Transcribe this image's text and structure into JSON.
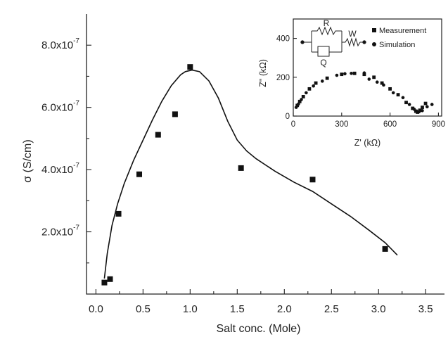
{
  "chart_data": [
    {
      "type": "scatter",
      "xlabel": "Salt conc. (Mole)",
      "ylabel": "σ (S/cm)",
      "xlim": [
        -0.1,
        3.7
      ],
      "ylim": [
        0.0,
        9e-07
      ],
      "xticks": [
        0.0,
        0.5,
        1.0,
        1.5,
        2.0,
        2.5,
        3.0,
        3.5
      ],
      "xtick_labels": [
        "0.0",
        "0.5",
        "1.0",
        "1.5",
        "2.0",
        "2.5",
        "3.0",
        "3.5"
      ],
      "yticks": [
        2e-07,
        4e-07,
        6e-07,
        8e-07
      ],
      "ytick_labels": [
        {
          "mant": "2.0x10",
          "exp": "-7"
        },
        {
          "mant": "4.0x10",
          "exp": "-7"
        },
        {
          "mant": "6.0x10",
          "exp": "-7"
        },
        {
          "mant": "8.0x10",
          "exp": "-7"
        }
      ],
      "series": [
        {
          "type": "scatter",
          "marker": "square",
          "x": [
            0.09,
            0.15,
            0.24,
            0.46,
            0.66,
            0.84,
            1.0,
            1.54,
            2.3,
            3.07
          ],
          "y": [
            3.7e-08,
            4.8e-08,
            2.58e-07,
            3.85e-07,
            5.12e-07,
            5.78e-07,
            7.3e-07,
            4.05e-07,
            3.68e-07,
            1.45e-07
          ]
        },
        {
          "type": "line",
          "x": [
            0.09,
            0.12,
            0.17,
            0.23,
            0.3,
            0.4,
            0.5,
            0.6,
            0.7,
            0.8,
            0.9,
            0.95,
            1.02,
            1.1,
            1.2,
            1.3,
            1.4,
            1.5,
            1.6,
            1.7,
            1.9,
            2.1,
            2.3,
            2.5,
            2.7,
            2.9,
            3.07,
            3.2
          ],
          "y": [
            5e-08,
            1.3e-07,
            2.2e-07,
            2.9e-07,
            3.55e-07,
            4.3e-07,
            4.95e-07,
            5.6e-07,
            6.2e-07,
            6.7e-07,
            7.05e-07,
            7.15e-07,
            7.2e-07,
            7.15e-07,
            6.85e-07,
            6.3e-07,
            5.55e-07,
            4.95e-07,
            4.6e-07,
            4.35e-07,
            3.95e-07,
            3.6e-07,
            3.3e-07,
            2.9e-07,
            2.5e-07,
            2.05e-07,
            1.65e-07,
            1.25e-07
          ]
        }
      ]
    },
    {
      "type": "scatter",
      "inset": true,
      "xlabel": "Z' (kΩ)",
      "ylabel": "Z'' (kΩ)",
      "xlim": [
        0,
        920
      ],
      "ylim": [
        0,
        500
      ],
      "xticks": [
        0,
        300,
        600,
        900
      ],
      "yticks": [
        0,
        200,
        400
      ],
      "legend": "top-right",
      "legend_entries": [
        {
          "marker": "square",
          "label": "Measurement"
        },
        {
          "marker": "circle",
          "label": "Simulation"
        }
      ],
      "circuit_labels": {
        "R": "R",
        "Q": "Q",
        "W": "W"
      },
      "series": [
        {
          "name": "Measurement",
          "marker": "square",
          "x": [
            25,
            40,
            62,
            100,
            140,
            210,
            300,
            380,
            440,
            500,
            550,
            600,
            650,
            700,
            740,
            760,
            770,
            785,
            800,
            820
          ],
          "y": [
            55,
            75,
            100,
            140,
            170,
            195,
            215,
            220,
            215,
            200,
            170,
            140,
            110,
            70,
            40,
            25,
            20,
            30,
            45,
            65
          ]
        },
        {
          "name": "Simulation",
          "marker": "circle",
          "x": [
            18,
            32,
            50,
            80,
            125,
            180,
            270,
            320,
            360,
            440,
            470,
            520,
            560,
            620,
            680,
            720,
            750,
            765,
            780,
            800,
            830,
            860
          ],
          "y": [
            45,
            62,
            85,
            120,
            155,
            180,
            210,
            218,
            220,
            222,
            190,
            175,
            160,
            120,
            95,
            60,
            35,
            25,
            22,
            28,
            48,
            60
          ]
        }
      ]
    }
  ]
}
